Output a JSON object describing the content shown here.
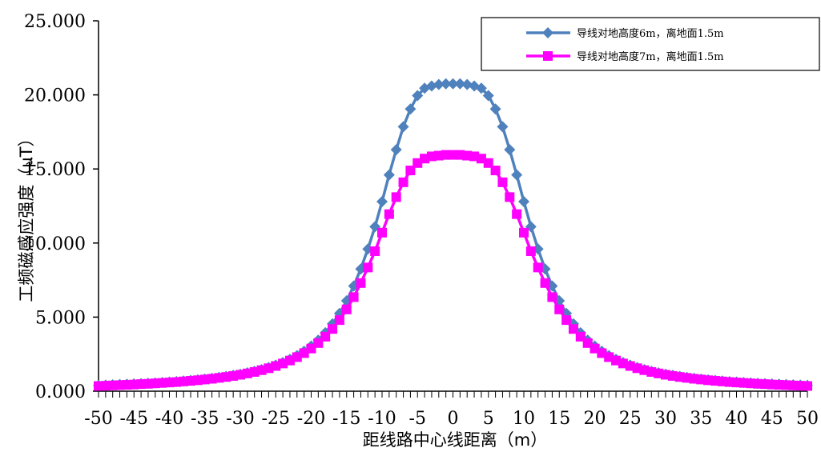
{
  "chart_data": {
    "type": "line",
    "title": "",
    "xlabel": "距线路中心线距离（m）",
    "ylabel": "工频磁感应强度（μT）",
    "xlim": [
      -50,
      50
    ],
    "ylim": [
      0,
      25
    ],
    "x_ticks": [
      "-50",
      "-45",
      "-40",
      "-35",
      "-30",
      "-25",
      "-20",
      "-15",
      "-10",
      "-5",
      "0",
      "5",
      "10",
      "15",
      "20",
      "25",
      "30",
      "35",
      "40",
      "45",
      "50"
    ],
    "y_ticks": [
      "0.000",
      "5.000",
      "10.000",
      "15.000",
      "20.000",
      "25.000"
    ],
    "legend_position": "top-right",
    "grid": false,
    "series": [
      {
        "name": "导线对地高度6m，离地面1.5m",
        "color": "#4f81bd",
        "marker": "diamond",
        "x": [
          -50,
          -49,
          -48,
          -47,
          -46,
          -45,
          -44,
          -43,
          -42,
          -41,
          -40,
          -39,
          -38,
          -37,
          -36,
          -35,
          -34,
          -33,
          -32,
          -31,
          -30,
          -29,
          -28,
          -27,
          -26,
          -25,
          -24,
          -23,
          -22,
          -21,
          -20,
          -19,
          -18,
          -17,
          -16,
          -15,
          -14,
          -13,
          -12,
          -11,
          -10,
          -9,
          -8,
          -7,
          -6,
          -5,
          -4,
          -3,
          -2,
          -1,
          0,
          1,
          2,
          3,
          4,
          5,
          6,
          7,
          8,
          9,
          10,
          11,
          12,
          13,
          14,
          15,
          16,
          17,
          18,
          19,
          20,
          21,
          22,
          23,
          24,
          25,
          26,
          27,
          28,
          29,
          30,
          31,
          32,
          33,
          34,
          35,
          36,
          37,
          38,
          39,
          40,
          41,
          42,
          43,
          44,
          45,
          46,
          47,
          48,
          49,
          50
        ],
        "values": [
          0.4,
          0.41,
          0.43,
          0.45,
          0.47,
          0.49,
          0.51,
          0.53,
          0.56,
          0.59,
          0.62,
          0.65,
          0.69,
          0.73,
          0.77,
          0.82,
          0.87,
          0.93,
          1.0,
          1.07,
          1.15,
          1.24,
          1.34,
          1.46,
          1.6,
          1.76,
          1.94,
          2.15,
          2.4,
          2.7,
          3.05,
          3.45,
          3.95,
          4.55,
          5.25,
          6.1,
          7.1,
          8.25,
          9.6,
          11.1,
          12.8,
          14.6,
          16.3,
          17.85,
          19.05,
          19.95,
          20.45,
          20.6,
          20.7,
          20.75,
          20.75,
          20.75,
          20.7,
          20.6,
          20.45,
          19.95,
          19.05,
          17.85,
          16.3,
          14.6,
          12.8,
          11.1,
          9.6,
          8.25,
          7.1,
          6.1,
          5.25,
          4.55,
          3.95,
          3.45,
          3.05,
          2.7,
          2.4,
          2.15,
          1.94,
          1.76,
          1.6,
          1.46,
          1.34,
          1.24,
          1.15,
          1.07,
          1.0,
          0.93,
          0.87,
          0.82,
          0.77,
          0.73,
          0.69,
          0.65,
          0.62,
          0.59,
          0.56,
          0.53,
          0.51,
          0.49,
          0.47,
          0.45,
          0.43,
          0.41,
          0.4
        ]
      },
      {
        "name": "导线对地高度7m，离地面1.5m",
        "color": "#ff00ff",
        "marker": "square",
        "x": [
          -50,
          -49,
          -48,
          -47,
          -46,
          -45,
          -44,
          -43,
          -42,
          -41,
          -40,
          -39,
          -38,
          -37,
          -36,
          -35,
          -34,
          -33,
          -32,
          -31,
          -30,
          -29,
          -28,
          -27,
          -26,
          -25,
          -24,
          -23,
          -22,
          -21,
          -20,
          -19,
          -18,
          -17,
          -16,
          -15,
          -14,
          -13,
          -12,
          -11,
          -10,
          -9,
          -8,
          -7,
          -6,
          -5,
          -4,
          -3,
          -2,
          -1,
          0,
          1,
          2,
          3,
          4,
          5,
          6,
          7,
          8,
          9,
          10,
          11,
          12,
          13,
          14,
          15,
          16,
          17,
          18,
          19,
          20,
          21,
          22,
          23,
          24,
          25,
          26,
          27,
          28,
          29,
          30,
          31,
          32,
          33,
          34,
          35,
          36,
          37,
          38,
          39,
          40,
          41,
          42,
          43,
          44,
          45,
          46,
          47,
          48,
          49,
          50
        ],
        "values": [
          0.35,
          0.37,
          0.39,
          0.41,
          0.43,
          0.45,
          0.48,
          0.5,
          0.53,
          0.56,
          0.59,
          0.62,
          0.66,
          0.7,
          0.74,
          0.79,
          0.84,
          0.9,
          0.96,
          1.03,
          1.11,
          1.2,
          1.3,
          1.42,
          1.55,
          1.7,
          1.87,
          2.07,
          2.3,
          2.57,
          2.88,
          3.25,
          3.68,
          4.2,
          4.8,
          5.52,
          6.35,
          7.3,
          8.35,
          9.45,
          10.7,
          11.95,
          13.1,
          14.1,
          14.9,
          15.4,
          15.7,
          15.85,
          15.9,
          15.95,
          15.95,
          15.95,
          15.9,
          15.85,
          15.7,
          15.4,
          14.9,
          14.1,
          13.1,
          11.95,
          10.7,
          9.45,
          8.35,
          7.3,
          6.35,
          5.52,
          4.8,
          4.2,
          3.68,
          3.25,
          2.88,
          2.57,
          2.3,
          2.07,
          1.87,
          1.7,
          1.55,
          1.42,
          1.3,
          1.2,
          1.11,
          1.03,
          0.96,
          0.9,
          0.84,
          0.79,
          0.74,
          0.7,
          0.66,
          0.62,
          0.59,
          0.56,
          0.53,
          0.5,
          0.48,
          0.45,
          0.43,
          0.41,
          0.39,
          0.37,
          0.35
        ]
      }
    ]
  }
}
